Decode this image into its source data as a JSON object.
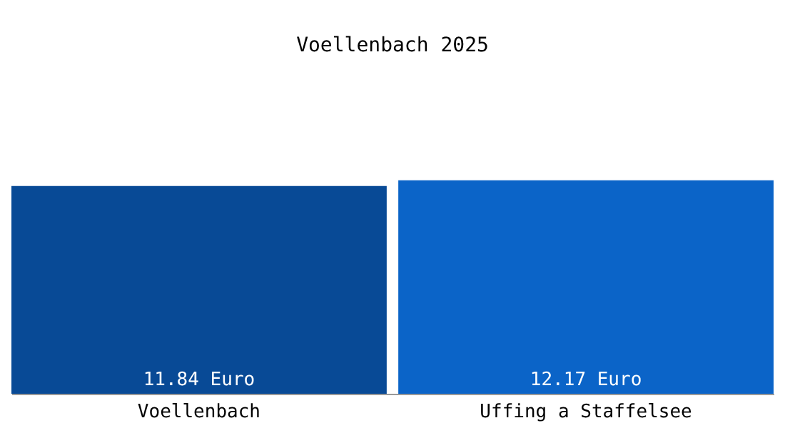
{
  "chart_data": {
    "type": "bar",
    "title": "Voellenbach 2025",
    "categories": [
      "Voellenbach",
      "Uffing a Staffelsee"
    ],
    "values": [
      11.84,
      12.17
    ],
    "colors": [
      "#084a96",
      "#0b64c8"
    ],
    "value_labels": [
      "11.84 Euro",
      "12.17 Euro"
    ]
  }
}
